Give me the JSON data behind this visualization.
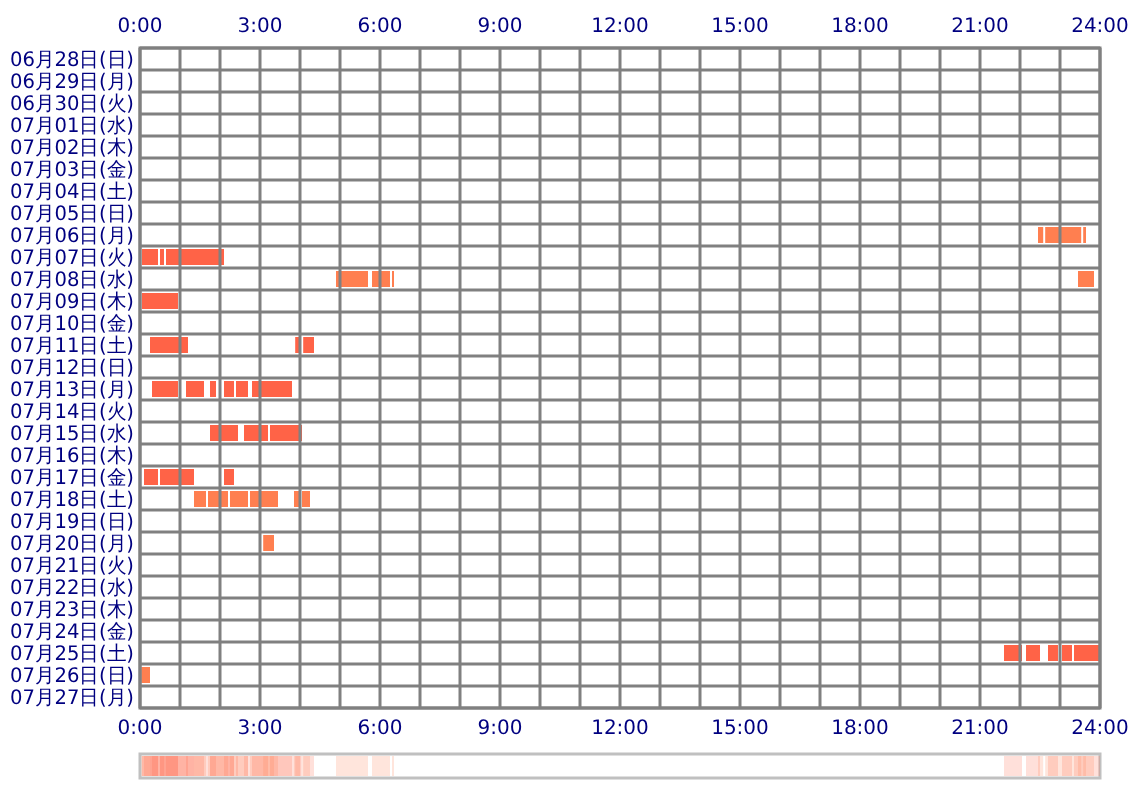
{
  "chart_data": {
    "type": "bar",
    "orientation": "horizontal",
    "grid": true,
    "categories": [
      "06月28日(日)",
      "06月29日(月)",
      "06月30日(火)",
      "07月01日(水)",
      "07月02日(木)",
      "07月03日(金)",
      "07月04日(土)",
      "07月05日(日)",
      "07月06日(月)",
      "07月07日(火)",
      "07月08日(水)",
      "07月09日(木)",
      "07月10日(金)",
      "07月11日(土)",
      "07月12日(日)",
      "07月13日(月)",
      "07月14日(火)",
      "07月15日(水)",
      "07月16日(木)",
      "07月17日(金)",
      "07月18日(土)",
      "07月19日(日)",
      "07月20日(月)",
      "07月21日(火)",
      "07月22日(水)",
      "07月23日(木)",
      "07月24日(金)",
      "07月25日(土)",
      "07月26日(日)",
      "07月27日(月)"
    ],
    "xlim": [
      0,
      24
    ],
    "xticks": [
      {
        "value": 0,
        "label": "0:00"
      },
      {
        "value": 1,
        "label": null
      },
      {
        "value": 2,
        "label": null
      },
      {
        "value": 3,
        "label": "3:00"
      },
      {
        "value": 4,
        "label": null
      },
      {
        "value": 5,
        "label": null
      },
      {
        "value": 6,
        "label": "6:00"
      },
      {
        "value": 7,
        "label": null
      },
      {
        "value": 8,
        "label": null
      },
      {
        "value": 9,
        "label": "9:00"
      },
      {
        "value": 10,
        "label": null
      },
      {
        "value": 11,
        "label": null
      },
      {
        "value": 12,
        "label": "12:00"
      },
      {
        "value": 13,
        "label": null
      },
      {
        "value": 14,
        "label": null
      },
      {
        "value": 15,
        "label": "15:00"
      },
      {
        "value": 16,
        "label": null
      },
      {
        "value": 17,
        "label": null
      },
      {
        "value": 18,
        "label": "18:00"
      },
      {
        "value": 19,
        "label": null
      },
      {
        "value": 20,
        "label": null
      },
      {
        "value": 21,
        "label": "21:00"
      },
      {
        "value": 22,
        "label": null
      },
      {
        "value": 23,
        "label": null
      },
      {
        "value": 24,
        "label": "24:00"
      }
    ],
    "x2lim": [
      0,
      24
    ],
    "x2ticks": [
      {
        "value": 0,
        "label": "0:00"
      },
      {
        "value": 3,
        "label": "3:00"
      },
      {
        "value": 6,
        "label": "6:00"
      },
      {
        "value": 9,
        "label": "9:00"
      },
      {
        "value": 12,
        "label": "12:00"
      },
      {
        "value": 15,
        "label": "15:00"
      },
      {
        "value": 18,
        "label": "18:00"
      },
      {
        "value": 21,
        "label": "21:00"
      },
      {
        "value": 24,
        "label": "24:00"
      }
    ],
    "series": [
      {
        "color": "#ff6347",
        "base": [
          null,
          null,
          null,
          null,
          null,
          null,
          null,
          null,
          null,
          0.05,
          null,
          0.05,
          null,
          0.25,
          null,
          0.3,
          null,
          1.75,
          null,
          0.1,
          null,
          null,
          null,
          null,
          null,
          null,
          null,
          21.6,
          null,
          null
        ],
        "values": [
          null,
          null,
          null,
          null,
          null,
          null,
          null,
          null,
          null,
          0.4,
          null,
          0.9,
          null,
          0.95,
          null,
          0.65,
          null,
          0.7,
          null,
          0.35,
          null,
          null,
          null,
          null,
          null,
          null,
          null,
          0.45,
          null,
          null
        ]
      },
      {
        "color": "#ff6347",
        "base": [
          null,
          null,
          null,
          null,
          null,
          null,
          null,
          null,
          null,
          0.5,
          null,
          null,
          null,
          3.88,
          null,
          1.15,
          null,
          2.6,
          null,
          0.5,
          null,
          null,
          null,
          null,
          null,
          null,
          null,
          22.15,
          null,
          null
        ],
        "values": [
          null,
          null,
          null,
          null,
          null,
          null,
          null,
          null,
          null,
          0.1,
          null,
          null,
          null,
          0.14,
          null,
          0.45,
          null,
          0.6,
          null,
          0.85,
          null,
          null,
          null,
          null,
          null,
          null,
          null,
          0.35,
          null,
          null
        ]
      },
      {
        "color": "#ff6347",
        "base": [
          null,
          null,
          null,
          null,
          null,
          null,
          null,
          null,
          null,
          0.65,
          null,
          null,
          null,
          4.08,
          null,
          1.75,
          null,
          3.25,
          null,
          2.1,
          null,
          null,
          null,
          null,
          null,
          null,
          null,
          22.7,
          null,
          null
        ],
        "values": [
          null,
          null,
          null,
          null,
          null,
          null,
          null,
          null,
          null,
          1.45,
          null,
          null,
          null,
          0.27,
          null,
          0.15,
          null,
          0.8,
          null,
          0.25,
          null,
          null,
          null,
          null,
          null,
          null,
          null,
          0.25,
          null,
          null
        ]
      },
      {
        "color": "#ff6347",
        "base": [
          null,
          null,
          null,
          null,
          null,
          null,
          null,
          null,
          null,
          null,
          null,
          null,
          null,
          null,
          null,
          2.1,
          null,
          null,
          null,
          null,
          null,
          null,
          null,
          null,
          null,
          null,
          null,
          23.05,
          null,
          null
        ],
        "values": [
          null,
          null,
          null,
          null,
          null,
          null,
          null,
          null,
          null,
          null,
          null,
          null,
          null,
          null,
          null,
          0.25,
          null,
          null,
          null,
          null,
          null,
          null,
          null,
          null,
          null,
          null,
          null,
          0.25,
          null,
          null
        ]
      },
      {
        "color": "#ff6347",
        "base": [
          null,
          null,
          null,
          null,
          null,
          null,
          null,
          null,
          null,
          null,
          null,
          null,
          null,
          null,
          null,
          2.4,
          null,
          null,
          null,
          null,
          null,
          null,
          null,
          null,
          null,
          null,
          null,
          23.35,
          null,
          null
        ],
        "values": [
          null,
          null,
          null,
          null,
          null,
          null,
          null,
          null,
          null,
          null,
          null,
          null,
          null,
          null,
          null,
          0.3,
          null,
          null,
          null,
          null,
          null,
          null,
          null,
          null,
          null,
          null,
          null,
          0.65,
          null,
          null
        ]
      },
      {
        "color": "#ff6347",
        "base": [
          null,
          null,
          null,
          null,
          null,
          null,
          null,
          null,
          null,
          null,
          null,
          null,
          null,
          null,
          null,
          2.8,
          null,
          null,
          null,
          null,
          null,
          null,
          null,
          null,
          null,
          null,
          null,
          null,
          null,
          null
        ],
        "values": [
          null,
          null,
          null,
          null,
          null,
          null,
          null,
          null,
          null,
          null,
          null,
          null,
          null,
          null,
          null,
          1.0,
          null,
          null,
          null,
          null,
          null,
          null,
          null,
          null,
          null,
          null,
          null,
          null,
          null,
          null
        ]
      },
      {
        "color": "#ff7f50",
        "base": [
          null,
          null,
          null,
          null,
          null,
          null,
          null,
          null,
          22.45,
          null,
          4.9,
          null,
          null,
          null,
          null,
          null,
          null,
          null,
          null,
          null,
          1.35,
          null,
          3.08,
          null,
          null,
          null,
          null,
          null,
          0.03,
          null
        ],
        "values": [
          null,
          null,
          null,
          null,
          null,
          null,
          null,
          null,
          0.13,
          null,
          0.8,
          null,
          null,
          null,
          null,
          null,
          null,
          null,
          null,
          null,
          0.3,
          null,
          0.27,
          null,
          null,
          null,
          null,
          null,
          0.22,
          null
        ]
      },
      {
        "color": "#ff7f50",
        "base": [
          null,
          null,
          null,
          null,
          null,
          null,
          null,
          null,
          22.63,
          null,
          5.8,
          null,
          null,
          null,
          null,
          null,
          null,
          null,
          null,
          null,
          1.7,
          null,
          null,
          null,
          null,
          null,
          null,
          null,
          null,
          null
        ],
        "values": [
          null,
          null,
          null,
          null,
          null,
          null,
          null,
          null,
          0.9,
          null,
          0.45,
          null,
          null,
          null,
          null,
          null,
          null,
          null,
          null,
          null,
          0.5,
          null,
          null,
          null,
          null,
          null,
          null,
          null,
          null,
          null
        ]
      },
      {
        "color": "#ff7f50",
        "base": [
          null,
          null,
          null,
          null,
          null,
          null,
          null,
          null,
          23.58,
          null,
          6.3,
          null,
          null,
          null,
          null,
          null,
          null,
          null,
          null,
          null,
          2.25,
          null,
          null,
          null,
          null,
          null,
          null,
          null,
          null,
          null
        ],
        "values": [
          null,
          null,
          null,
          null,
          null,
          null,
          null,
          null,
          0.07,
          null,
          0.05,
          null,
          null,
          null,
          null,
          null,
          null,
          null,
          null,
          null,
          0.45,
          null,
          null,
          null,
          null,
          null,
          null,
          null,
          null,
          null
        ]
      },
      {
        "color": "#ff7f50",
        "base": [
          null,
          null,
          null,
          null,
          null,
          null,
          null,
          null,
          null,
          null,
          23.45,
          null,
          null,
          null,
          null,
          null,
          null,
          null,
          null,
          null,
          2.75,
          null,
          null,
          null,
          null,
          null,
          null,
          null,
          null,
          null
        ],
        "values": [
          null,
          null,
          null,
          null,
          null,
          null,
          null,
          null,
          null,
          null,
          0.4,
          null,
          null,
          null,
          null,
          null,
          null,
          null,
          null,
          null,
          0.7,
          null,
          null,
          null,
          null,
          null,
          null,
          null,
          null,
          null
        ]
      },
      {
        "color": "#ff7f50",
        "base": [
          null,
          null,
          null,
          null,
          null,
          null,
          null,
          null,
          null,
          null,
          null,
          null,
          null,
          null,
          null,
          null,
          null,
          null,
          null,
          null,
          3.85,
          null,
          null,
          null,
          null,
          null,
          null,
          null,
          null,
          null
        ],
        "values": [
          null,
          null,
          null,
          null,
          null,
          null,
          null,
          null,
          null,
          null,
          null,
          null,
          null,
          null,
          null,
          null,
          null,
          null,
          null,
          null,
          0.15,
          null,
          null,
          null,
          null,
          null,
          null,
          null,
          null,
          null
        ]
      },
      {
        "color": "#ff7f50",
        "base": [
          null,
          null,
          null,
          null,
          null,
          null,
          null,
          null,
          null,
          null,
          null,
          null,
          null,
          null,
          null,
          null,
          null,
          null,
          null,
          null,
          4.05,
          null,
          null,
          null,
          null,
          null,
          null,
          null,
          null,
          null
        ],
        "values": [
          null,
          null,
          null,
          null,
          null,
          null,
          null,
          null,
          null,
          null,
          null,
          null,
          null,
          null,
          null,
          null,
          null,
          null,
          null,
          null,
          0.2,
          null,
          null,
          null,
          null,
          null,
          null,
          null,
          null,
          null
        ]
      }
    ]
  }
}
